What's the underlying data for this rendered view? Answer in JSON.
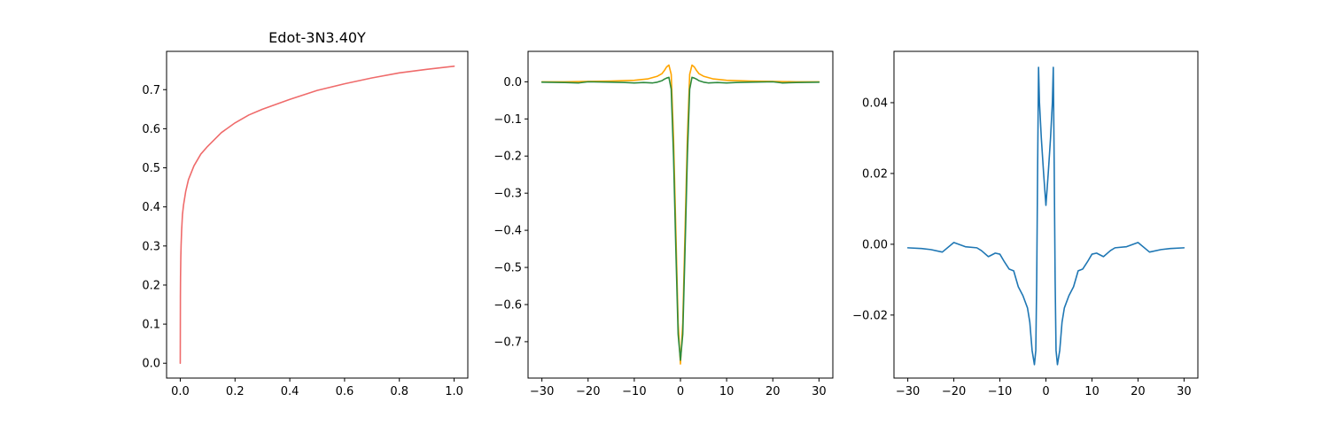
{
  "chart_data": [
    {
      "type": "line",
      "title": "Edot-3N3.40Y",
      "xlabel": "",
      "ylabel": "",
      "xlim": [
        -0.05,
        1.05
      ],
      "ylim": [
        -0.038,
        0.798
      ],
      "xticks": [
        0.0,
        0.2,
        0.4,
        0.6,
        0.8,
        1.0
      ],
      "xtick_labels": [
        "0.0",
        "0.2",
        "0.4",
        "0.6",
        "0.8",
        "1.0"
      ],
      "yticks": [
        0.0,
        0.1,
        0.2,
        0.3,
        0.4,
        0.5,
        0.6,
        0.7
      ],
      "ytick_labels": [
        "0.0",
        "0.1",
        "0.2",
        "0.3",
        "0.4",
        "0.5",
        "0.6",
        "0.7"
      ],
      "grid": false,
      "series": [
        {
          "color": "#ef6b6b",
          "x": [
            0,
            0.0005,
            0.001,
            0.002,
            0.003,
            0.005,
            0.008,
            0.012,
            0.02,
            0.03,
            0.05,
            0.075,
            0.1,
            0.15,
            0.2,
            0.25,
            0.3,
            0.4,
            0.5,
            0.6,
            0.7,
            0.8,
            0.9,
            1.0
          ],
          "y": [
            0.0,
            0.17,
            0.22,
            0.27,
            0.3,
            0.34,
            0.38,
            0.405,
            0.44,
            0.47,
            0.505,
            0.535,
            0.555,
            0.59,
            0.615,
            0.635,
            0.65,
            0.675,
            0.698,
            0.715,
            0.73,
            0.743,
            0.752,
            0.76
          ]
        }
      ]
    },
    {
      "type": "line",
      "title": "",
      "xlabel": "",
      "ylabel": "",
      "xlim": [
        -33,
        33
      ],
      "ylim": [
        -0.798,
        0.082
      ],
      "xticks": [
        -30,
        -20,
        -10,
        0,
        10,
        20,
        30
      ],
      "xtick_labels": [
        "−30",
        "−20",
        "−10",
        "0",
        "10",
        "20",
        "30"
      ],
      "yticks": [
        0.0,
        -0.1,
        -0.2,
        -0.3,
        -0.4,
        -0.5,
        -0.6,
        -0.7
      ],
      "ytick_labels": [
        "0.0",
        "−0.1",
        "−0.2",
        "−0.3",
        "−0.4",
        "−0.5",
        "−0.6",
        "−0.7"
      ],
      "grid": false,
      "series": [
        {
          "color": "#ffa500",
          "x": [
            -30,
            -25,
            -20,
            -15,
            -10,
            -7,
            -5,
            -4,
            -3.5,
            -3,
            -2.5,
            -2,
            -1.5,
            -1,
            -0.5,
            0,
            0.5,
            1,
            1.5,
            2,
            2.5,
            3,
            3.5,
            4,
            5,
            7,
            10,
            15,
            20,
            25,
            30
          ],
          "y": [
            0.0,
            0.0,
            0.001,
            0.002,
            0.004,
            0.008,
            0.015,
            0.022,
            0.03,
            0.04,
            0.045,
            0.02,
            -0.15,
            -0.4,
            -0.65,
            -0.76,
            -0.65,
            -0.4,
            -0.15,
            0.02,
            0.045,
            0.04,
            0.03,
            0.022,
            0.015,
            0.008,
            0.004,
            0.002,
            0.001,
            0.0,
            0.0
          ]
        },
        {
          "color": "#2e8b3e",
          "x": [
            -30,
            -25,
            -22,
            -20,
            -15,
            -12,
            -10,
            -8,
            -6,
            -5,
            -4,
            -3.5,
            -3,
            -2.5,
            -2,
            -1.5,
            -1,
            -0.5,
            0,
            0.5,
            1,
            1.5,
            2,
            2.5,
            3,
            3.5,
            4,
            5,
            6,
            8,
            10,
            12,
            15,
            20,
            22,
            25,
            30
          ],
          "y": [
            -0.001,
            -0.002,
            -0.003,
            0.0,
            -0.001,
            -0.002,
            -0.003,
            -0.002,
            -0.003,
            -0.001,
            0.003,
            0.007,
            0.01,
            0.012,
            -0.02,
            -0.2,
            -0.45,
            -0.68,
            -0.75,
            -0.68,
            -0.45,
            -0.2,
            -0.02,
            0.012,
            0.01,
            0.007,
            0.003,
            -0.001,
            -0.003,
            -0.002,
            -0.003,
            -0.002,
            -0.001,
            0.0,
            -0.003,
            -0.002,
            -0.001
          ]
        }
      ]
    },
    {
      "type": "line",
      "title": "",
      "xlabel": "",
      "ylabel": "",
      "xlim": [
        -33,
        33
      ],
      "ylim": [
        -0.0378,
        0.0545
      ],
      "xticks": [
        -30,
        -20,
        -10,
        0,
        10,
        20,
        30
      ],
      "xtick_labels": [
        "−30",
        "−20",
        "−10",
        "0",
        "10",
        "20",
        "30"
      ],
      "yticks": [
        0.04,
        0.02,
        0.0,
        -0.02
      ],
      "ytick_labels": [
        "0.04",
        "0.02",
        "0.00",
        "−0.02"
      ],
      "grid": false,
      "series": [
        {
          "color": "#1f77b4",
          "x": [
            -30,
            -27,
            -25,
            -22.5,
            -20,
            -17.5,
            -15,
            -14,
            -12.5,
            -11,
            -10,
            -9,
            -8,
            -7,
            -6,
            -5,
            -4,
            -3.5,
            -3,
            -2.5,
            -2.2,
            -2,
            -1.8,
            -1.6,
            -1.4,
            -1,
            -0.5,
            0,
            0.5,
            1,
            1.4,
            1.6,
            1.8,
            2,
            2.2,
            2.5,
            3,
            3.5,
            4,
            5,
            6,
            7,
            8,
            9,
            10,
            11,
            12.5,
            14,
            15,
            17.5,
            20,
            22.5,
            25,
            27,
            30
          ],
          "y": [
            -0.001,
            -0.0012,
            -0.0015,
            -0.0022,
            0.0005,
            -0.0007,
            -0.001,
            -0.0018,
            -0.0035,
            -0.0025,
            -0.0028,
            -0.005,
            -0.007,
            -0.0075,
            -0.012,
            -0.0145,
            -0.018,
            -0.022,
            -0.03,
            -0.034,
            -0.03,
            -0.01,
            0.022,
            0.05,
            0.04,
            0.03,
            0.02,
            0.011,
            0.02,
            0.03,
            0.04,
            0.05,
            0.022,
            -0.01,
            -0.03,
            -0.034,
            -0.03,
            -0.022,
            -0.018,
            -0.0145,
            -0.012,
            -0.0075,
            -0.007,
            -0.005,
            -0.0028,
            -0.0025,
            -0.0035,
            -0.0018,
            -0.001,
            -0.0007,
            0.0005,
            -0.0022,
            -0.0015,
            -0.0012,
            -0.001
          ]
        }
      ]
    }
  ]
}
